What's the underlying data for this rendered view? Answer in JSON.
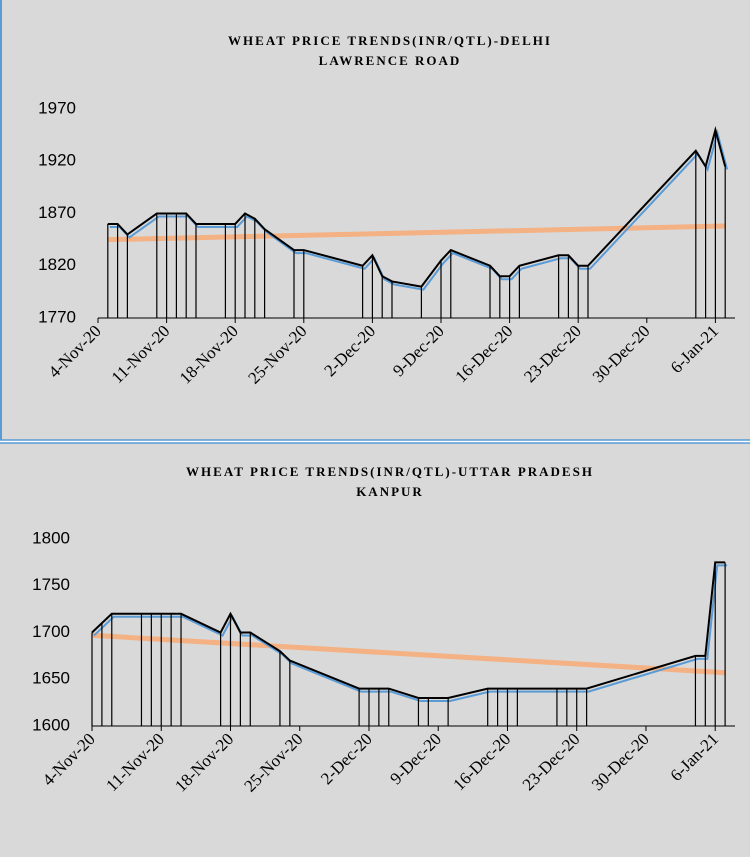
{
  "chart_data": [
    {
      "type": "line",
      "title": [
        "WHEAT PRICE TRENDS(INR/QTL)-DELHI",
        "LAWRENCE ROAD"
      ],
      "x": [
        "2020-11-05",
        "2020-11-06",
        "2020-11-07",
        "2020-11-10",
        "2020-11-11",
        "2020-11-12",
        "2020-11-13",
        "2020-11-14",
        "2020-11-17",
        "2020-11-18",
        "2020-11-19",
        "2020-11-20",
        "2020-11-21",
        "2020-11-24",
        "2020-11-25",
        "2020-12-01",
        "2020-12-02",
        "2020-12-03",
        "2020-12-04",
        "2020-12-07",
        "2020-12-09",
        "2020-12-10",
        "2020-12-14",
        "2020-12-15",
        "2020-12-16",
        "2020-12-17",
        "2020-12-21",
        "2020-12-22",
        "2020-12-23",
        "2020-12-24",
        "2021-01-04",
        "2021-01-05",
        "2021-01-06",
        "2021-01-07"
      ],
      "series": [
        {
          "color": "#000000",
          "shadow_color": "#5b9bd5",
          "values": [
            1860,
            1860,
            1850,
            1870,
            1870,
            1870,
            1870,
            1860,
            1860,
            1860,
            1870,
            1865,
            1855,
            1835,
            1835,
            1820,
            1830,
            1810,
            1805,
            1800,
            1825,
            1835,
            1820,
            1810,
            1810,
            1820,
            1830,
            1830,
            1820,
            1820,
            1930,
            1915,
            1950,
            1915
          ]
        }
      ],
      "trend": {
        "color": "#f4b183",
        "values": [
          1845,
          1858
        ]
      },
      "drop_lines": true,
      "xlim": [
        "2020-11-04",
        "2021-01-08"
      ],
      "xticks": [
        {
          "value": "2020-11-04",
          "label": "4-Nov-20"
        },
        {
          "value": "2020-11-11",
          "label": "11-Nov-20"
        },
        {
          "value": "2020-11-18",
          "label": "18-Nov-20"
        },
        {
          "value": "2020-11-25",
          "label": "25-Nov-20"
        },
        {
          "value": "2020-12-02",
          "label": "2-Dec-20"
        },
        {
          "value": "2020-12-09",
          "label": "9-Dec-20"
        },
        {
          "value": "2020-12-16",
          "label": "16-Dec-20"
        },
        {
          "value": "2020-12-23",
          "label": "23-Dec-20"
        },
        {
          "value": "2020-12-30",
          "label": "30-Dec-20"
        },
        {
          "value": "2021-01-06",
          "label": "6-Jan-21"
        }
      ],
      "ylim": [
        1770,
        1970
      ],
      "yticks": [
        1770,
        1820,
        1870,
        1920,
        1970
      ]
    },
    {
      "type": "line",
      "title": [
        "WHEAT PRICE TRENDS(INR/QTL)-UTTAR PRADESH",
        "KANPUR"
      ],
      "x": [
        "2020-11-04",
        "2020-11-05",
        "2020-11-06",
        "2020-11-09",
        "2020-11-10",
        "2020-11-11",
        "2020-11-12",
        "2020-11-13",
        "2020-11-17",
        "2020-11-18",
        "2020-11-19",
        "2020-11-20",
        "2020-11-23",
        "2020-11-24",
        "2020-12-01",
        "2020-12-02",
        "2020-12-03",
        "2020-12-04",
        "2020-12-07",
        "2020-12-08",
        "2020-12-10",
        "2020-12-14",
        "2020-12-15",
        "2020-12-16",
        "2020-12-17",
        "2020-12-21",
        "2020-12-22",
        "2020-12-23",
        "2020-12-24",
        "2021-01-04",
        "2021-01-05",
        "2021-01-06",
        "2021-01-07"
      ],
      "series": [
        {
          "color": "#000000",
          "shadow_color": "#5b9bd5",
          "values": [
            1700,
            1710,
            1720,
            1720,
            1720,
            1720,
            1720,
            1720,
            1700,
            1720,
            1700,
            1700,
            1680,
            1670,
            1640,
            1640,
            1640,
            1640,
            1630,
            1630,
            1630,
            1640,
            1640,
            1640,
            1640,
            1640,
            1640,
            1640,
            1640,
            1675,
            1675,
            1775,
            1775
          ]
        }
      ],
      "trend": {
        "color": "#f4b183",
        "values": [
          1697,
          1657
        ]
      },
      "drop_lines": true,
      "xlim": [
        "2020-11-04",
        "2021-01-08"
      ],
      "xticks": [
        {
          "value": "2020-11-04",
          "label": "4-Nov-20"
        },
        {
          "value": "2020-11-11",
          "label": "11-Nov-20"
        },
        {
          "value": "2020-11-18",
          "label": "18-Nov-20"
        },
        {
          "value": "2020-11-25",
          "label": "25-Nov-20"
        },
        {
          "value": "2020-12-02",
          "label": "2-Dec-20"
        },
        {
          "value": "2020-12-09",
          "label": "9-Dec-20"
        },
        {
          "value": "2020-12-16",
          "label": "16-Dec-20"
        },
        {
          "value": "2020-12-23",
          "label": "23-Dec-20"
        },
        {
          "value": "2020-12-30",
          "label": "30-Dec-20"
        },
        {
          "value": "2021-01-06",
          "label": "6-Jan-21"
        }
      ],
      "ylim": [
        1600,
        1800
      ],
      "yticks": [
        1600,
        1650,
        1700,
        1750,
        1800
      ]
    }
  ]
}
